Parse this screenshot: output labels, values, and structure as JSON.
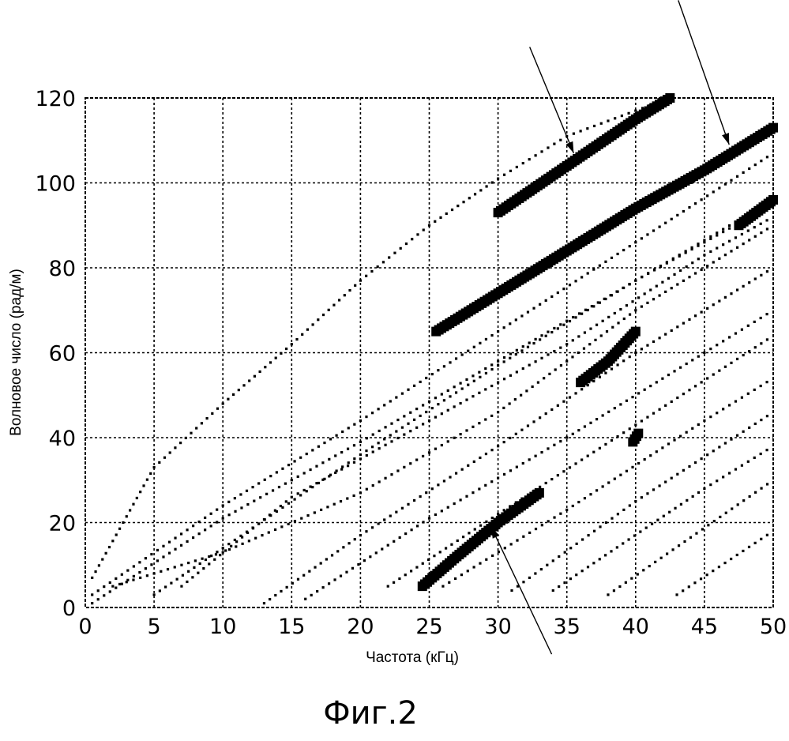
{
  "figure": {
    "caption": "Фиг.2"
  },
  "chart_data": {
    "type": "scatter",
    "title": "",
    "xlabel": "Частота (кГц)",
    "ylabel": "Волновое число (рад/м)",
    "xlim": [
      0,
      50
    ],
    "ylim": [
      0,
      120
    ],
    "x_ticks": [
      "0",
      "5",
      "10",
      "15",
      "20",
      "25",
      "30",
      "35",
      "40",
      "45",
      "50"
    ],
    "y_ticks": [
      "0",
      "20",
      "40",
      "60",
      "80",
      "100",
      "120"
    ],
    "grid": true,
    "legend": "none",
    "series": [
      {
        "emphasis": "dotted",
        "x": [
          0.5,
          5,
          10,
          15,
          20,
          25,
          30,
          35,
          40,
          42.5
        ],
        "y": [
          7,
          33,
          48,
          62,
          77,
          90,
          101,
          111,
          117,
          120
        ]
      },
      {
        "emphasis": "dotted",
        "x": [
          0.5,
          10,
          20,
          30,
          40,
          50
        ],
        "y": [
          3,
          24,
          44,
          65,
          86,
          107
        ]
      },
      {
        "emphasis": "dotted",
        "x": [
          0.5,
          10,
          20,
          30,
          40,
          50
        ],
        "y": [
          1,
          21,
          39,
          58,
          77,
          95
        ]
      },
      {
        "emphasis": "dotted",
        "x": [
          5,
          10,
          20,
          30,
          40,
          50
        ],
        "y": [
          3,
          14,
          36,
          57,
          77,
          96
        ]
      },
      {
        "emphasis": "dotted",
        "x": [
          2,
          10,
          20,
          30,
          40,
          50
        ],
        "y": [
          5,
          13,
          27,
          46,
          70,
          90
        ]
      },
      {
        "emphasis": "dotted",
        "x": [
          7,
          15,
          25,
          35,
          45,
          50
        ],
        "y": [
          5,
          26,
          44,
          62,
          83,
          92
        ]
      },
      {
        "emphasis": "dotted",
        "x": [
          13,
          20,
          30,
          40,
          50
        ],
        "y": [
          1,
          17,
          38,
          60,
          80
        ]
      },
      {
        "emphasis": "dotted",
        "x": [
          16,
          25,
          35,
          45,
          50
        ],
        "y": [
          2,
          21,
          40,
          60,
          70
        ]
      },
      {
        "emphasis": "dotted",
        "x": [
          22,
          30,
          40,
          50
        ],
        "y": [
          5,
          22,
          43,
          64
        ]
      },
      {
        "emphasis": "dotted",
        "x": [
          26,
          35,
          45,
          50
        ],
        "y": [
          5,
          23,
          44,
          54
        ]
      },
      {
        "emphasis": "dotted",
        "x": [
          31,
          40,
          50
        ],
        "y": [
          4,
          25,
          46
        ]
      },
      {
        "emphasis": "dotted",
        "x": [
          34,
          45,
          50
        ],
        "y": [
          4,
          28,
          38
        ]
      },
      {
        "emphasis": "dotted",
        "x": [
          38,
          50
        ],
        "y": [
          3,
          30
        ]
      },
      {
        "emphasis": "dotted",
        "x": [
          43,
          50
        ],
        "y": [
          3,
          18
        ]
      },
      {
        "emphasis": "highlighted",
        "x": [
          30,
          35,
          40,
          42.5
        ],
        "y": [
          93,
          104,
          115,
          120
        ]
      },
      {
        "emphasis": "highlighted",
        "x": [
          25.5,
          30,
          35,
          40,
          45,
          50
        ],
        "y": [
          65,
          74,
          84,
          94,
          103,
          113
        ]
      },
      {
        "emphasis": "highlighted",
        "x": [
          24.5,
          27,
          30,
          33
        ],
        "y": [
          5,
          12,
          20,
          27
        ]
      },
      {
        "emphasis": "highlighted",
        "x": [
          36,
          38,
          40
        ],
        "y": [
          53,
          58,
          65
        ]
      },
      {
        "emphasis": "highlighted",
        "x": [
          47.5,
          50
        ],
        "y": [
          90,
          96
        ]
      },
      {
        "emphasis": "highlighted",
        "x": [
          39.8,
          40.2
        ],
        "y": [
          39,
          41
        ]
      }
    ],
    "annotation_arrows": [
      {
        "from": [
          32.3,
          132
        ],
        "to": [
          35.5,
          107
        ]
      },
      {
        "from": [
          43.1,
          143
        ],
        "to": [
          46.8,
          109
        ]
      },
      {
        "from": [
          33.9,
          -11
        ],
        "to": [
          29.5,
          19
        ]
      }
    ]
  }
}
